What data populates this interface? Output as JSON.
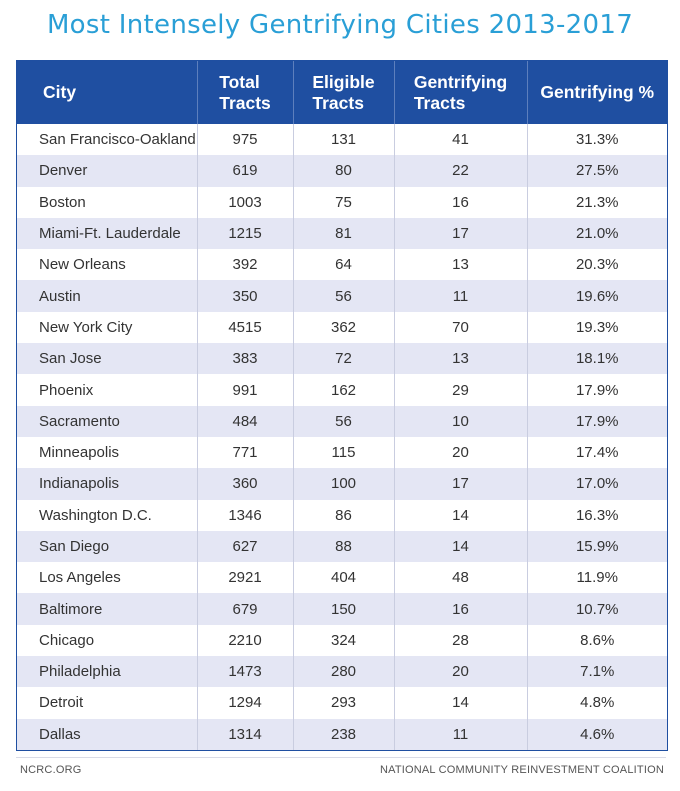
{
  "chart_data": {
    "type": "table",
    "title": "Most Intensely Gentrifying Cities 2013-2017",
    "columns": [
      {
        "line1": "City",
        "line2": ""
      },
      {
        "line1": "Total",
        "line2": "Tracts"
      },
      {
        "line1": "Eligible",
        "line2": "Tracts"
      },
      {
        "line1": "Gentrifying",
        "line2": "Tracts"
      },
      {
        "line1": "Gentrifying %",
        "line2": ""
      }
    ],
    "rows": [
      [
        "San Francisco-Oakland",
        "975",
        "131",
        "41",
        "31.3%"
      ],
      [
        "Denver",
        "619",
        "80",
        "22",
        "27.5%"
      ],
      [
        "Boston",
        "1003",
        "75",
        "16",
        "21.3%"
      ],
      [
        "Miami-Ft. Lauderdale",
        "1215",
        "81",
        "17",
        "21.0%"
      ],
      [
        "New Orleans",
        "392",
        "64",
        "13",
        "20.3%"
      ],
      [
        "Austin",
        "350",
        "56",
        "11",
        "19.6%"
      ],
      [
        "New York City",
        "4515",
        "362",
        "70",
        "19.3%"
      ],
      [
        "San Jose",
        "383",
        "72",
        "13",
        "18.1%"
      ],
      [
        "Phoenix",
        "991",
        "162",
        "29",
        "17.9%"
      ],
      [
        "Sacramento",
        "484",
        "56",
        "10",
        "17.9%"
      ],
      [
        "Minneapolis",
        "771",
        "115",
        "20",
        "17.4%"
      ],
      [
        "Indianapolis",
        "360",
        "100",
        "17",
        "17.0%"
      ],
      [
        "Washington D.C.",
        "1346",
        "86",
        "14",
        "16.3%"
      ],
      [
        "San Diego",
        "627",
        "88",
        "14",
        "15.9%"
      ],
      [
        "Los Angeles",
        "2921",
        "404",
        "48",
        "11.9%"
      ],
      [
        "Baltimore",
        "679",
        "150",
        "16",
        "10.7%"
      ],
      [
        "Chicago",
        "2210",
        "324",
        "28",
        "8.6%"
      ],
      [
        "Philadelphia",
        "1473",
        "280",
        "20",
        "7.1%"
      ],
      [
        "Detroit",
        "1294",
        "293",
        "14",
        "4.8%"
      ],
      [
        "Dallas",
        "1314",
        "238",
        "11",
        "4.6%"
      ]
    ]
  },
  "footer": {
    "left": "NCRC.ORG",
    "right": "NATIONAL COMMUNITY REINVESTMENT COALITION"
  },
  "colors": {
    "title": "#2a9fd6",
    "header_bg": "#1f4fa1",
    "stripe": "#e4e6f4"
  }
}
